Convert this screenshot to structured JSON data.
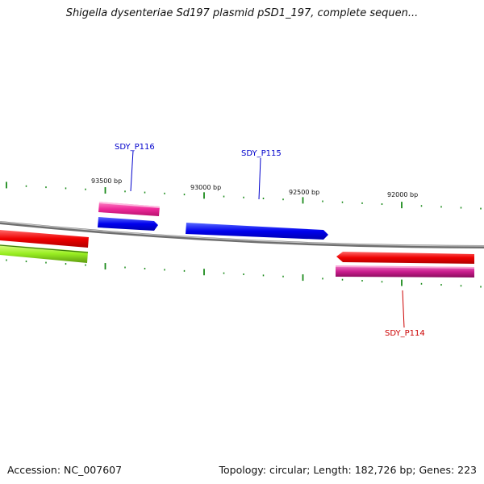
{
  "title": "Shigella dysenteriae Sd197 plasmid pSD1_197, complete sequen...",
  "footer": {
    "accession": "Accession: NC_007607",
    "summary": "Topology: circular; Length: 182,726 bp; Genes: 223"
  },
  "ticks": [
    {
      "label": "93500 bp"
    },
    {
      "label": "93000 bp"
    },
    {
      "label": "92500 bp"
    },
    {
      "label": "92000 bp"
    }
  ],
  "genes": [
    {
      "name": "SDY_P116",
      "color": "#0000cc"
    },
    {
      "name": "SDY_P115",
      "color": "#0000cc"
    },
    {
      "name": "SDY_P114",
      "color": "#cc0000"
    }
  ],
  "colors": {
    "backbone": "#888888",
    "tick": "#1a8a1a",
    "forward": "#0000ee",
    "reverse": "#ee0000",
    "pink": "#ee2a9a",
    "magenta": "#cc1f8f",
    "lime": "#99ee22"
  }
}
